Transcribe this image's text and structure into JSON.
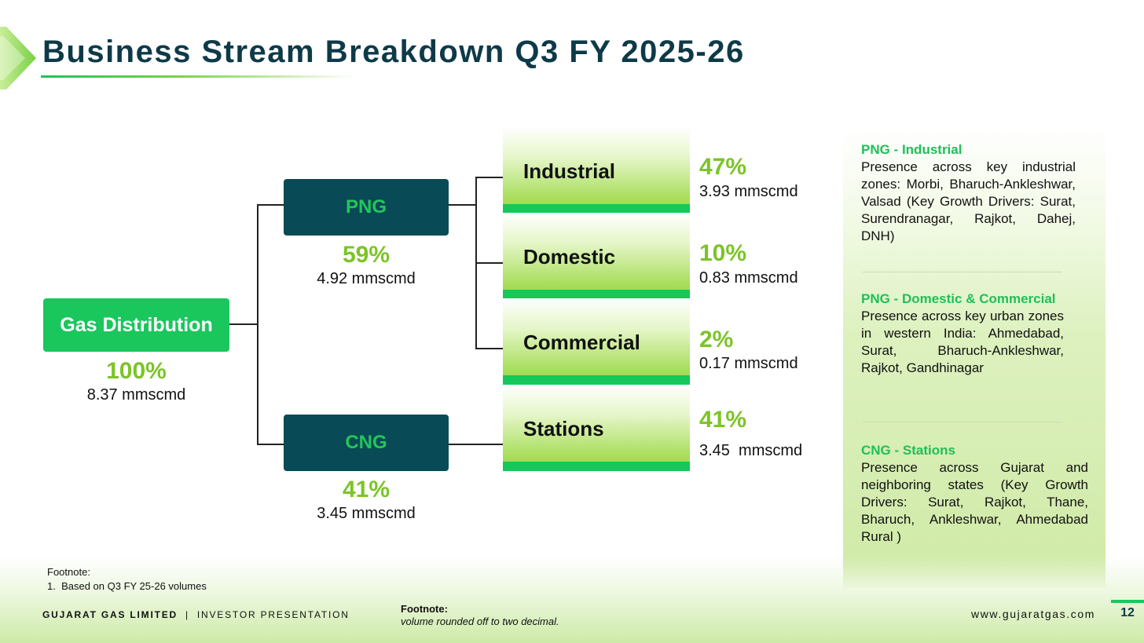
{
  "title": "Business Stream Breakdown Q3 FY 2025-26",
  "colors": {
    "accent_green": "#19c75c",
    "dark_teal": "#084a55",
    "lime_percent": "#7cc427",
    "title_color": "#0e3a48"
  },
  "root": {
    "label": "Gas Distribution",
    "percent": "100%",
    "volume": "8.37 mmscmd"
  },
  "png": {
    "label": "PNG",
    "percent": "59%",
    "volume": "4.92 mmscmd"
  },
  "cng": {
    "label": "CNG",
    "percent": "41%",
    "volume": "3.45 mmscmd"
  },
  "leaves": [
    {
      "label": "Industrial",
      "percent": "47%",
      "volume": "3.93 mmscmd"
    },
    {
      "label": "Domestic",
      "percent": "10%",
      "volume": "0.83 mmscmd"
    },
    {
      "label": "Commercial",
      "percent": "2%",
      "volume": "0.17 mmscmd"
    },
    {
      "label": "Stations",
      "percent": "41%",
      "volume": "3.45  mmscmd"
    }
  ],
  "panel": [
    {
      "heading": "PNG - Industrial",
      "text": "Presence across key industrial zones: Morbi, Bharuch-Ankleshwar, Valsad (Key Growth Drivers: Surat, Surendranagar, Rajkot, Dahej, DNH)"
    },
    {
      "heading": "PNG - Domestic & Commercial",
      "text": "Presence across key urban zones in western India: Ahmedabad, Surat, Bharuch-Ankleshwar, Rajkot, Gandhinagar"
    },
    {
      "heading": "CNG - Stations",
      "text": "Presence across Gujarat and neighboring states (Key Growth Drivers: Surat, Rajkot, Thane, Bharuch, Ankleshwar, Ahmedabad Rural )"
    }
  ],
  "footnote_left": {
    "title": "Footnote:",
    "item": "1.  Based on Q3 FY 25-26 volumes"
  },
  "footnote_center": {
    "title": "Footnote:",
    "text": "volume rounded off to two decimal."
  },
  "footer": {
    "company": "GUJARAT GAS LIMITED",
    "separator": "|",
    "subtitle": "INVESTOR PRESENTATION",
    "url": "www.gujaratgas.com",
    "page": "12"
  }
}
